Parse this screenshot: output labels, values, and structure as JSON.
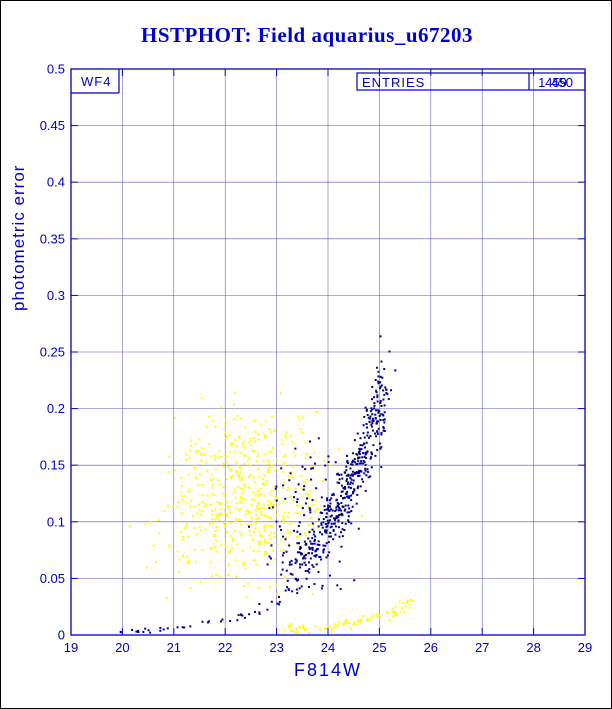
{
  "page": {
    "background": "#ffffff",
    "border_color": "#000000"
  },
  "chart_data": {
    "type": "scatter",
    "title": "HSTPHOT: Field aquarius_u67203",
    "xlabel": "F814W",
    "ylabel": "photometric error",
    "xlim": [
      19,
      29
    ],
    "ylim": [
      0,
      0.5
    ],
    "x_ticks": [
      19,
      20,
      21,
      22,
      23,
      24,
      25,
      26,
      27,
      28,
      29
    ],
    "y_ticks": [
      0,
      0.05,
      0.1,
      0.15,
      0.2,
      0.25,
      0.3,
      0.35,
      0.4,
      0.45,
      0.5
    ],
    "y_tick_labels": [
      "0",
      "0.05",
      "0.1",
      "0.15",
      "0.2",
      "0.25",
      "0.3",
      "0.35",
      "0.4",
      "0.45",
      "0.5"
    ],
    "grid": true,
    "legend_position": "none",
    "title_color": "#0000cd",
    "axis_color": "#0000c0",
    "grid_color": "#5a5ab8",
    "annotations": {
      "chip_label": "WF4",
      "entries_label": "ENTRIES",
      "entries_values": [
        "1459",
        "450"
      ]
    },
    "series": [
      {
        "name": "yellow-error-cloud",
        "color": "#ffff00",
        "marker_px": 2,
        "generator": {
          "kind": "gauss",
          "n": 560,
          "seed": 101,
          "cx": 22.45,
          "cy": 0.122,
          "sx": 0.75,
          "sy": 0.04,
          "xmin": 20.1,
          "xmax": 24.7,
          "ymin": 0.032,
          "ymax": 0.225
        }
      },
      {
        "name": "yellow-bright-sequence",
        "color": "#ffff00",
        "marker_px": 2,
        "generator": {
          "kind": "expcurve",
          "n": 85,
          "seed": 102,
          "x0": 23.05,
          "x1": 25.7,
          "bias": 0.85,
          "base": 0.002,
          "amp": 0.0022,
          "rate": 0.95,
          "y_rel_jitter": 0.1,
          "y_abs_jitter": 0.0018,
          "x_jitter": 0.06
        }
      },
      {
        "name": "blue-faint-branch",
        "color": "#00008f",
        "marker_px": 2,
        "generator": {
          "kind": "expcurve",
          "n": 440,
          "seed": 103,
          "x0": 23.0,
          "x1": 25.12,
          "bias": 0.5,
          "base": 0.0,
          "amp": 0.047,
          "rate": 0.72,
          "y_rel_jitter": 0.09,
          "y_abs_jitter": 0.005,
          "x_jitter": 0.09
        }
      },
      {
        "name": "blue-mid-scatter",
        "color": "#00008f",
        "marker_px": 2,
        "generator": {
          "kind": "gauss",
          "n": 120,
          "seed": 104,
          "cx": 23.6,
          "cy": 0.105,
          "sx": 0.5,
          "sy": 0.033,
          "xmin": 22.3,
          "xmax": 24.8,
          "ymin": 0.03,
          "ymax": 0.19
        }
      },
      {
        "name": "blue-bright-sequence",
        "color": "#00008f",
        "marker_px": 2,
        "generator": {
          "kind": "expcurve",
          "n": 48,
          "seed": 105,
          "x0": 19.95,
          "x1": 23.75,
          "bias": 1.0,
          "base": 0.002,
          "amp": 0.0016,
          "rate": 0.92,
          "y_rel_jitter": 0.08,
          "y_abs_jitter": 0.0015,
          "x_jitter": 0.07
        }
      }
    ]
  }
}
